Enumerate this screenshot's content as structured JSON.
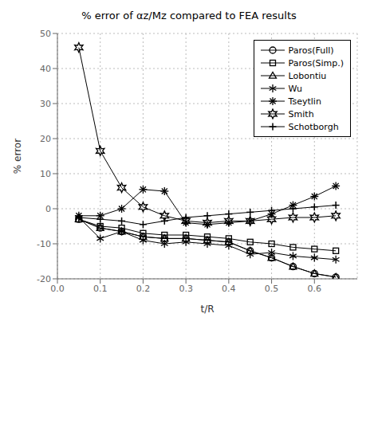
{
  "chart_data": {
    "type": "line",
    "title": "% error of αz/Mz compared to FEA results",
    "xlabel": "t/R",
    "ylabel": "% error",
    "xlim": [
      0,
      0.7
    ],
    "ylim": [
      -20,
      50
    ],
    "xticks": [
      {
        "value": 0,
        "label": "0.0"
      },
      0.1,
      0.2,
      0.3,
      0.4,
      0.5,
      0.6
    ],
    "yticks": [
      -20,
      -10,
      0,
      10,
      20,
      30,
      40,
      50
    ],
    "x": [
      0.05,
      0.1,
      0.15,
      0.2,
      0.25,
      0.3,
      0.35,
      0.4,
      0.45,
      0.5,
      0.55,
      0.6,
      0.65
    ],
    "series": [
      {
        "name": "Paros(Full)",
        "color": "#000000",
        "marker": "circle",
        "values": [
          -3.0,
          -5.5,
          -6.5,
          -8.0,
          -8.5,
          -8.5,
          -9.0,
          -9.5,
          -12.0,
          -14.0,
          -16.5,
          -18.5,
          -19.5
        ]
      },
      {
        "name": "Paros(Simp.)",
        "color": "#000000",
        "marker": "square",
        "values": [
          -3.0,
          -5.0,
          -5.5,
          -7.0,
          -7.5,
          -7.5,
          -8.0,
          -8.5,
          -9.5,
          -10.0,
          -11.0,
          -11.5,
          -12.0
        ]
      },
      {
        "name": "Lobontiu",
        "color": "#000000",
        "marker": "triangle",
        "values": [
          -3.0,
          -5.5,
          -6.5,
          -8.0,
          -8.5,
          -8.5,
          -9.0,
          -9.5,
          -12.0,
          -14.0,
          -16.5,
          -18.5,
          -19.5
        ]
      },
      {
        "name": "Wu",
        "color": "#000000",
        "marker": "asterisk6",
        "values": [
          -2.5,
          -8.5,
          -6.5,
          -9.0,
          -10.0,
          -9.5,
          -10.0,
          -10.5,
          -13.0,
          -12.5,
          -13.5,
          -14.0,
          -14.5
        ]
      },
      {
        "name": "Tseytlin",
        "color": "#000000",
        "marker": "asterisk8",
        "values": [
          -2.0,
          -2.0,
          0.0,
          5.5,
          5.0,
          -4.0,
          -4.5,
          -4.0,
          -3.5,
          -1.5,
          1.0,
          3.5,
          6.5
        ]
      },
      {
        "name": "Smith",
        "color": "#000000",
        "marker": "star",
        "values": [
          46.0,
          16.5,
          6.0,
          0.5,
          -2.0,
          -3.5,
          -4.0,
          -3.5,
          -3.5,
          -3.0,
          -2.5,
          -2.5,
          -2.0
        ]
      },
      {
        "name": "Schotborgh",
        "color": "#000000",
        "marker": "plus",
        "values": [
          -2.5,
          -3.0,
          -3.5,
          -4.5,
          -3.5,
          -2.5,
          -2.0,
          -1.5,
          -1.0,
          -0.5,
          0.0,
          0.5,
          1.0
        ]
      }
    ],
    "grid": true,
    "legend": "upper right"
  }
}
